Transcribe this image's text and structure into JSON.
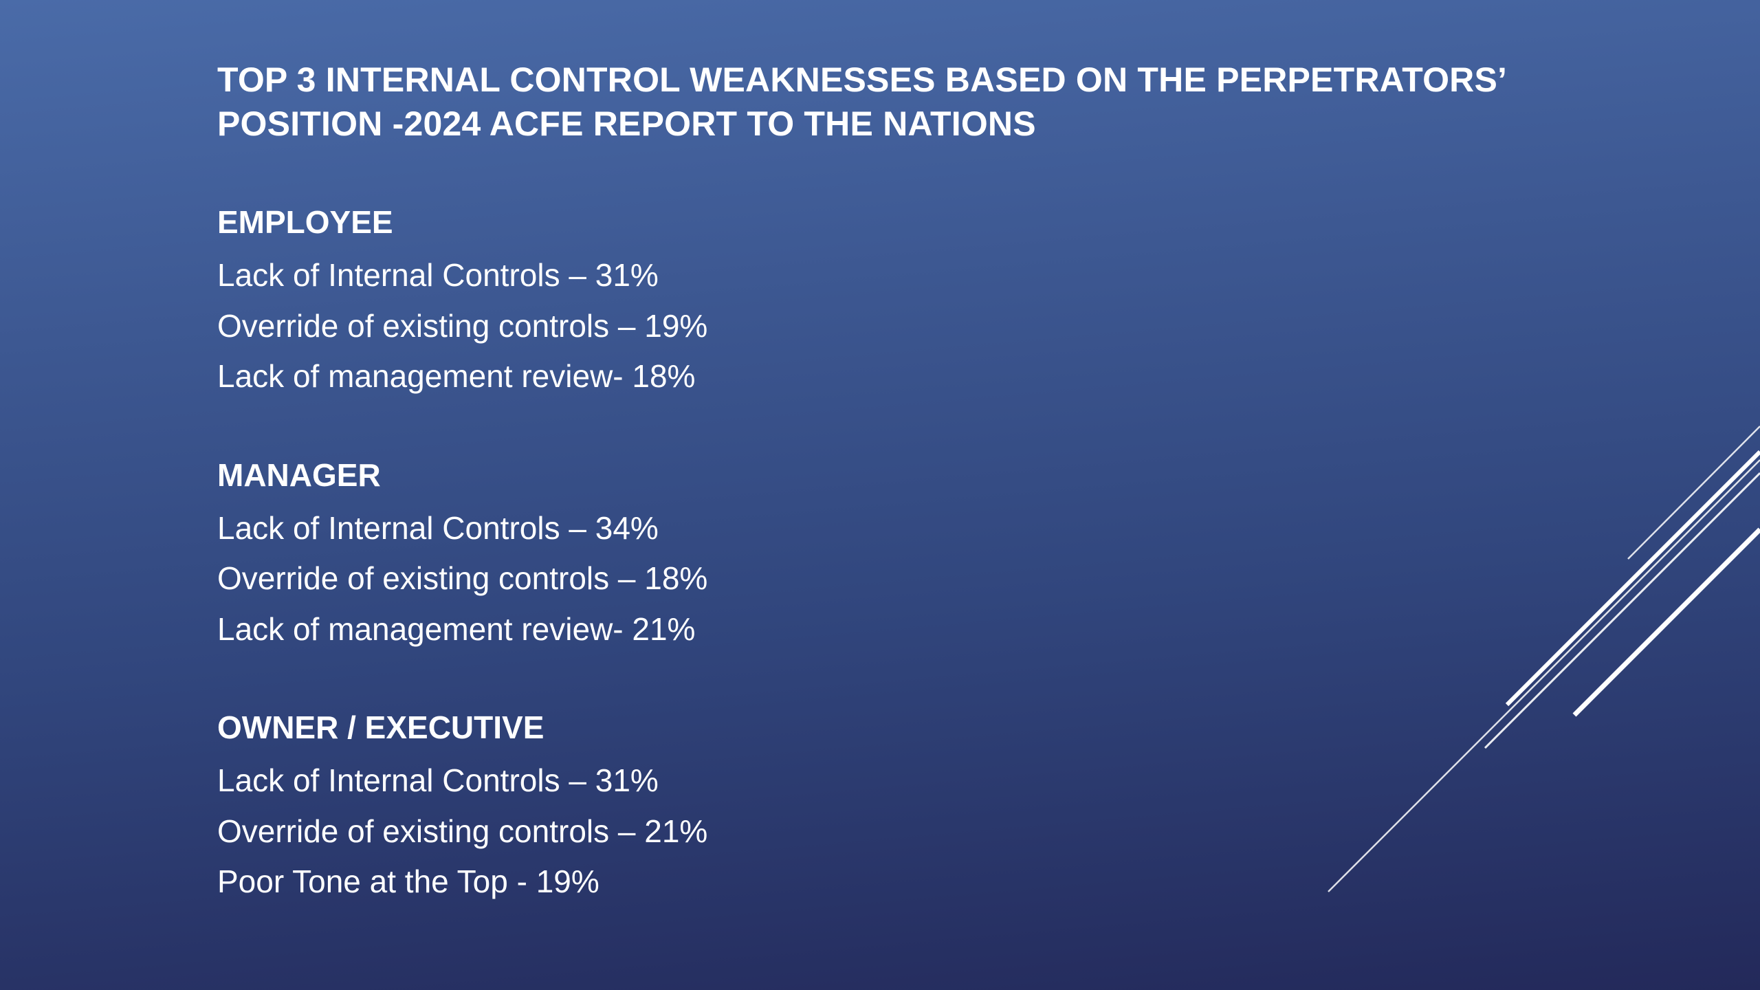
{
  "slide": {
    "title_line1": "TOP 3 INTERNAL CONTROL WEAKNESSES BASED ON THE PERPETRATORS’",
    "title_line2": "POSITION -2024 ACFE REPORT TO THE NATIONS",
    "sections": [
      {
        "heading": "EMPLOYEE",
        "items": [
          "Lack of Internal Controls – 31%",
          "Override of existing controls – 19%",
          "Lack of management review- 18%"
        ]
      },
      {
        "heading": "MANAGER",
        "items": [
          "Lack of Internal Controls – 34%",
          "Override of existing controls – 18%",
          "Lack of management review- 21%"
        ]
      },
      {
        "heading": "OWNER / EXECUTIVE",
        "items": [
          "Lack of Internal Controls – 31%",
          "Override of existing controls – 21%",
          "Poor Tone at the Top - 19%"
        ]
      }
    ]
  },
  "colors": {
    "background_top": "#4a6ba8",
    "background_bottom": "#23295a",
    "text": "#ffffff"
  }
}
